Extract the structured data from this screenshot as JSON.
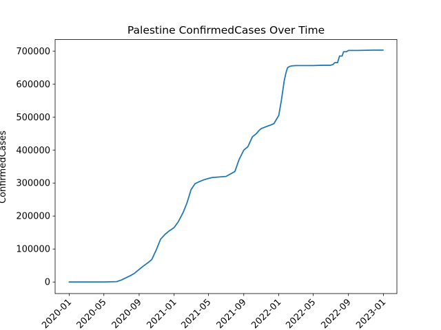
{
  "chart_data": {
    "type": "line",
    "title": "Palestine  ConfirmedCases Over Time",
    "xlabel": "",
    "ylabel": "ConfirmedCases",
    "grid": false,
    "legend": "none",
    "line_color": "#1f77b4",
    "xlim": [
      "2019-11-13",
      "2023-02-17"
    ],
    "ylim": [
      -35000,
      735000
    ],
    "x_ticks": [
      "2020-01",
      "2020-05",
      "2020-09",
      "2021-01",
      "2021-05",
      "2021-09",
      "2022-01",
      "2022-05",
      "2022-09",
      "2023-01"
    ],
    "y_ticks": [
      0,
      100000,
      200000,
      300000,
      400000,
      500000,
      600000,
      700000
    ],
    "y_tick_labels": [
      "0",
      "100000",
      "200000",
      "300000",
      "400000",
      "500000",
      "600000",
      "700000"
    ],
    "series": [
      {
        "x": [
          "2020-01-01",
          "2020-03-05",
          "2020-05-01",
          "2020-06-15",
          "2020-07-01",
          "2020-07-15",
          "2020-08-01",
          "2020-08-15",
          "2020-09-01",
          "2020-09-15",
          "2020-10-01",
          "2020-10-15",
          "2020-11-01",
          "2020-11-15",
          "2020-12-01",
          "2020-12-15",
          "2021-01-01",
          "2021-01-15",
          "2021-02-01",
          "2021-02-15",
          "2021-03-01",
          "2021-03-15",
          "2021-04-01",
          "2021-04-15",
          "2021-05-01",
          "2021-05-15",
          "2021-06-01",
          "2021-07-01",
          "2021-08-01",
          "2021-08-15",
          "2021-09-01",
          "2021-09-15",
          "2021-10-01",
          "2021-10-15",
          "2021-10-20",
          "2021-10-25",
          "2021-11-01",
          "2021-11-15",
          "2021-12-01",
          "2021-12-15",
          "2022-01-01",
          "2022-01-10",
          "2022-01-15",
          "2022-01-20",
          "2022-01-25",
          "2022-01-28",
          "2022-02-01",
          "2022-02-05",
          "2022-02-10",
          "2022-02-15",
          "2022-03-01",
          "2022-03-15",
          "2022-04-01",
          "2022-05-01",
          "2022-06-01",
          "2022-07-01",
          "2022-07-10",
          "2022-07-15",
          "2022-07-20",
          "2022-07-25",
          "2022-08-01",
          "2022-08-10",
          "2022-08-15",
          "2022-08-20",
          "2022-08-25",
          "2022-09-01",
          "2022-10-01",
          "2022-12-01",
          "2022-12-31"
        ],
        "y": [
          0,
          30,
          200,
          1200,
          6000,
          12000,
          19000,
          26000,
          38000,
          48000,
          58000,
          68000,
          100000,
          130000,
          145000,
          155000,
          165000,
          182000,
          210000,
          240000,
          280000,
          298000,
          305000,
          310000,
          314000,
          317000,
          318000,
          320000,
          335000,
          370000,
          400000,
          410000,
          440000,
          450000,
          455000,
          460000,
          465000,
          470000,
          475000,
          480000,
          505000,
          550000,
          580000,
          610000,
          630000,
          640000,
          650000,
          652000,
          654000,
          655000,
          656000,
          656000,
          656000,
          656000,
          657000,
          657000,
          660000,
          665000,
          665000,
          665000,
          685000,
          685000,
          698000,
          698000,
          698000,
          702000,
          702000,
          703000,
          703000
        ]
      }
    ]
  }
}
